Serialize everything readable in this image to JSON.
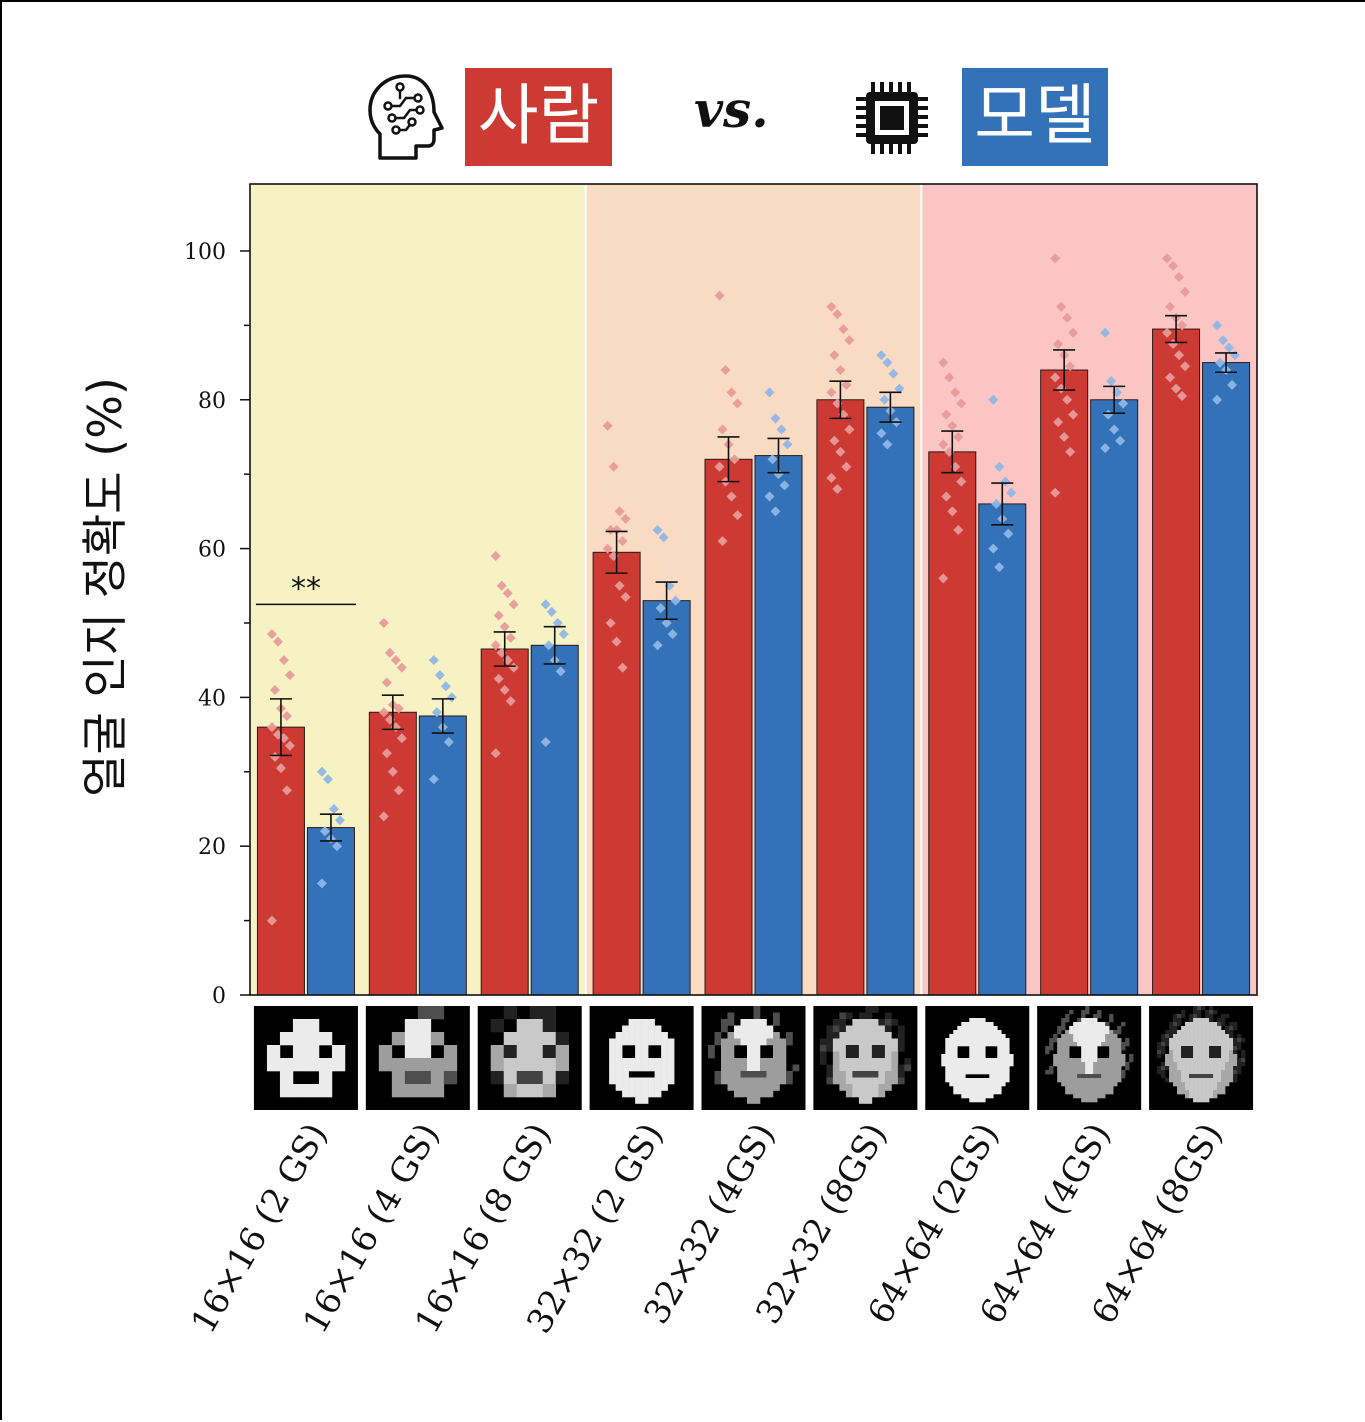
{
  "header": {
    "human_label": "사람",
    "vs_label": "vs.",
    "model_label": "모델",
    "human_icon": "brain-head-icon",
    "model_icon": "cpu-chip-icon",
    "human_color": "#cc3a33",
    "model_color": "#3372b8"
  },
  "chart_data": {
    "type": "bar",
    "title": "",
    "xlabel": "",
    "ylabel": "얼굴 인지 정확도 (%)",
    "ylim": [
      0,
      109
    ],
    "yticks": [
      0,
      20,
      40,
      60,
      80,
      100
    ],
    "grid": false,
    "categories": [
      "16×16 (2 GS)",
      "16×16 (4 GS)",
      "16×16 (8 GS)",
      "32×32 (2 GS)",
      "32×32 (4GS)",
      "32×32 (8GS)",
      "64×64 (2GS)",
      "64×64 (4GS)",
      "64×64 (8GS)"
    ],
    "background_groups": [
      {
        "from": 0,
        "to": 2,
        "color": "#f6f2c3"
      },
      {
        "from": 3,
        "to": 5,
        "color": "#f9dbc4"
      },
      {
        "from": 6,
        "to": 8,
        "color": "#fac5c3"
      }
    ],
    "series": [
      {
        "name": "사람",
        "color": "#cc3a33",
        "point_color": "#e89a9a",
        "values": [
          36.0,
          38.0,
          46.5,
          59.5,
          72.0,
          80.0,
          73.0,
          84.0,
          89.5
        ],
        "errors": [
          3.8,
          2.3,
          2.3,
          2.8,
          3.0,
          2.5,
          2.8,
          2.7,
          1.8
        ],
        "points": [
          [
            48.5,
            47.5,
            45,
            43,
            41,
            38.5,
            37.5,
            36,
            35,
            34.5,
            33.5,
            32,
            30.5,
            27.5,
            10
          ],
          [
            50,
            46,
            45,
            44,
            42,
            39,
            38.5,
            38,
            37,
            36,
            34.5,
            32.5,
            30,
            27.5,
            24
          ],
          [
            59,
            55,
            54,
            52.5,
            51,
            49.5,
            48,
            47,
            46,
            45,
            44,
            42.5,
            41,
            39.5,
            32.5
          ],
          [
            76.5,
            71,
            65,
            64,
            62.5,
            62.5,
            61,
            60,
            59,
            55,
            53.5,
            50,
            47.5,
            44
          ],
          [
            94,
            84,
            81,
            79.5,
            76,
            74,
            72,
            71,
            69,
            67,
            64.5,
            61
          ],
          [
            92.5,
            91.5,
            89.5,
            88,
            86,
            84,
            82,
            81,
            79.5,
            78,
            76,
            74.5,
            73,
            71,
            69.5,
            68
          ],
          [
            85,
            83,
            81,
            79.5,
            78,
            76.5,
            75,
            74,
            73,
            71,
            69,
            67,
            65,
            62.5,
            56
          ],
          [
            99,
            92.5,
            91,
            89,
            87.5,
            86,
            84.5,
            83,
            81.5,
            80,
            78,
            77,
            75,
            73,
            67.5
          ],
          [
            99,
            98,
            96.5,
            94.5,
            92.5,
            91,
            90,
            89,
            87.5,
            86,
            84.5,
            83,
            81.5,
            80.5
          ]
        ]
      },
      {
        "name": "모델",
        "color": "#3372b8",
        "point_color": "#8fb6e6",
        "values": [
          22.5,
          37.5,
          47.0,
          53.0,
          72.5,
          79.0,
          66.0,
          80.0,
          85.0
        ],
        "errors": [
          1.8,
          2.3,
          2.5,
          2.5,
          2.3,
          2.0,
          2.8,
          1.8,
          1.3
        ],
        "points": [
          [
            30,
            29,
            25,
            23.5,
            22,
            21,
            20,
            15
          ],
          [
            45,
            43,
            41.5,
            40,
            38,
            36,
            34,
            29
          ],
          [
            52.5,
            51.5,
            50,
            48.5,
            47,
            45,
            43.5,
            34
          ],
          [
            62.5,
            61.5,
            55,
            53,
            52,
            50,
            48.5,
            47
          ],
          [
            81,
            77.5,
            76,
            74,
            72,
            70,
            68.5,
            67,
            65
          ],
          [
            86,
            85,
            83.5,
            81.5,
            80,
            78.5,
            77,
            75.5,
            74
          ],
          [
            80,
            71,
            69,
            67.5,
            66,
            64,
            62,
            60,
            57.5
          ],
          [
            89,
            82.5,
            81,
            79.5,
            78,
            76,
            74.5,
            73.5
          ],
          [
            90,
            88,
            87,
            86,
            85,
            84,
            82,
            80
          ]
        ]
      }
    ],
    "annotations": [
      {
        "text": "**",
        "between_category": 0
      }
    ]
  }
}
